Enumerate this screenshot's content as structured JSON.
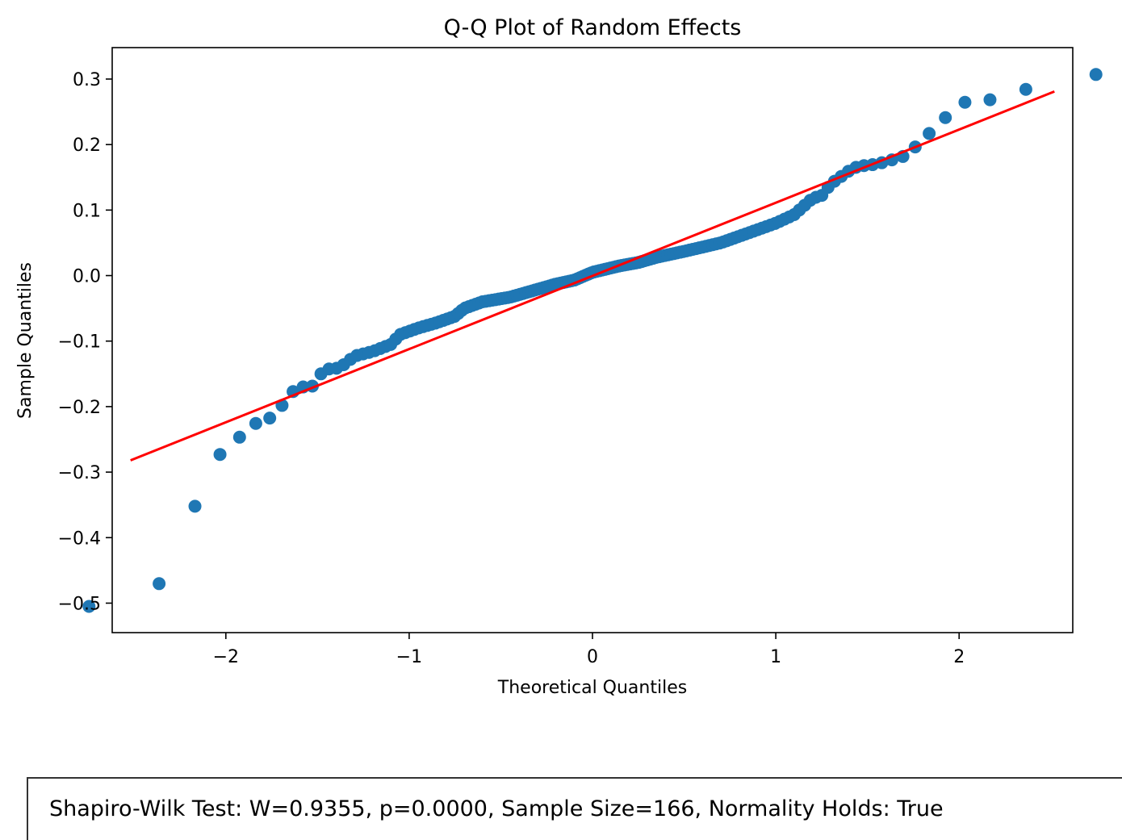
{
  "chart_data": {
    "type": "scatter",
    "title": "Q-Q Plot of Random Effects",
    "xlabel": "Theoretical Quantiles",
    "ylabel": "Sample Quantiles",
    "xlim": [
      -2.62,
      2.62
    ],
    "ylim": [
      -0.545,
      0.348
    ],
    "xticks": [
      -2,
      -1,
      0,
      1,
      2
    ],
    "xtick_labels": [
      "−2",
      "−1",
      "0",
      "1",
      "2"
    ],
    "yticks": [
      0.3,
      0.2,
      0.1,
      0.0,
      -0.1,
      -0.2,
      -0.3,
      -0.4,
      -0.5
    ],
    "ytick_labels": [
      "0.3",
      "0.2",
      "0.1",
      "0.0",
      "−0.1",
      "−0.2",
      "−0.3",
      "−0.4",
      "−0.5"
    ],
    "grid": false,
    "marker_color": "#1f77b4",
    "line_color": "#ff0000",
    "sample_size": 166,
    "reference_line": {
      "x": [
        -2.52,
        2.52
      ],
      "y": [
        -0.282,
        0.281
      ]
    },
    "knots": [
      [
        -2.52,
        -0.505
      ],
      [
        -2.26,
        -0.447
      ],
      [
        -2.1,
        -0.281
      ],
      [
        -1.98,
        -0.267
      ],
      [
        -1.88,
        -0.23
      ],
      [
        -1.8,
        -0.222
      ],
      [
        -1.73,
        -0.214
      ],
      [
        -1.67,
        -0.188
      ],
      [
        -1.61,
        -0.17
      ],
      [
        -1.56,
        -0.17
      ],
      [
        -1.51,
        -0.168
      ],
      [
        -1.47,
        -0.143
      ],
      [
        -1.4,
        -0.142
      ],
      [
        -1.35,
        -0.135
      ],
      [
        -1.3,
        -0.123
      ],
      [
        -1.2,
        -0.116
      ],
      [
        -1.1,
        -0.105
      ],
      [
        -1.05,
        -0.09
      ],
      [
        -0.95,
        -0.08
      ],
      [
        -0.85,
        -0.072
      ],
      [
        -0.75,
        -0.062
      ],
      [
        -0.7,
        -0.05
      ],
      [
        -0.6,
        -0.04
      ],
      [
        -0.45,
        -0.033
      ],
      [
        -0.35,
        -0.025
      ],
      [
        -0.2,
        -0.013
      ],
      [
        -0.1,
        -0.007
      ],
      [
        0.0,
        0.005
      ],
      [
        0.15,
        0.015
      ],
      [
        0.25,
        0.02
      ],
      [
        0.35,
        0.028
      ],
      [
        0.5,
        0.037
      ],
      [
        0.7,
        0.05
      ],
      [
        0.85,
        0.065
      ],
      [
        1.0,
        0.08
      ],
      [
        1.1,
        0.093
      ],
      [
        1.2,
        0.118
      ],
      [
        1.25,
        0.122
      ],
      [
        1.3,
        0.14
      ],
      [
        1.4,
        0.16
      ],
      [
        1.45,
        0.167
      ],
      [
        1.55,
        0.17
      ],
      [
        1.65,
        0.178
      ],
      [
        1.73,
        0.185
      ],
      [
        1.8,
        0.211
      ],
      [
        1.88,
        0.224
      ],
      [
        1.98,
        0.262
      ],
      [
        2.1,
        0.268
      ],
      [
        2.26,
        0.269
      ],
      [
        2.52,
        0.307
      ]
    ]
  },
  "stats": {
    "text": "Shapiro-Wilk Test: W=0.9355, p=0.0000, Sample Size=166, Normality Holds: True"
  }
}
